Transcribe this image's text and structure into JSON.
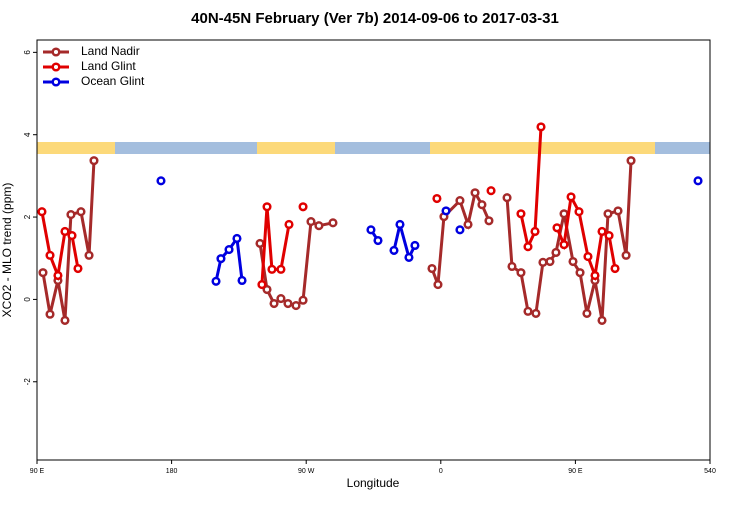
{
  "chart_data": {
    "type": "line",
    "title": "40N-45N February (Ver 7b)   2014-09-06 to 2017-03-31",
    "x_label": "Longitude",
    "y_label": "XCO2 - MLO trend (ppm)",
    "xlim": [
      90,
      540
    ],
    "ylim": [
      -3.9,
      6.3
    ],
    "xticks": [
      {
        "value": 90,
        "label": "90 E"
      },
      180,
      {
        "value": 270,
        "label": "90 W"
      },
      {
        "value": 360,
        "label": "0"
      },
      {
        "value": 450,
        "label": "90 E"
      },
      540
    ],
    "yticks": [
      -2,
      0,
      2,
      4,
      6
    ],
    "legend": "top-left",
    "series": [
      {
        "name": "Land Nadir",
        "color": "#a52a2a",
        "x": [
          94.0,
          98.7,
          104.0,
          108.7,
          112.7,
          119.4,
          124.8,
          128.1,
          null,
          239.1,
          243.8,
          248.5,
          253.1,
          257.8,
          263.2,
          267.9,
          273.2,
          278.5,
          287.9,
          null,
          354.1,
          358.1,
          362.1,
          372.8,
          378.2,
          382.9,
          387.5,
          392.2,
          null,
          404.3,
          407.6,
          413.6,
          418.3,
          423.6,
          428.3,
          433.0,
          437.0,
          442.4,
          448.4,
          453.1,
          457.7,
          463.1,
          467.8,
          471.8,
          478.5,
          483.9,
          487.2
        ],
        "values": [
          0.65,
          -0.36,
          0.46,
          -0.51,
          2.06,
          2.13,
          1.07,
          3.37,
          null,
          1.36,
          0.24,
          -0.1,
          0.02,
          -0.1,
          -0.15,
          -0.02,
          1.89,
          1.79,
          1.86,
          null,
          0.75,
          0.36,
          2.01,
          2.4,
          1.82,
          2.59,
          2.3,
          1.91,
          null,
          2.47,
          0.8,
          0.65,
          -0.29,
          -0.34,
          0.9,
          0.92,
          1.14,
          2.08,
          0.92,
          0.65,
          -0.34,
          0.46,
          -0.51,
          2.08,
          2.15,
          1.07,
          3.37
        ]
      },
      {
        "name": "Land Glint",
        "color": "#e00000",
        "x": [
          93.3,
          98.7,
          104.0,
          108.7,
          113.4,
          117.4,
          null,
          240.4,
          243.8,
          247.1,
          253.1,
          258.5,
          null,
          267.9,
          null,
          357.4,
          null,
          393.6,
          null,
          413.6,
          418.3,
          423.0,
          427.0,
          null,
          437.7,
          442.4,
          447.1,
          452.4,
          458.4,
          463.1,
          467.8,
          472.5,
          476.5
        ],
        "values": [
          2.13,
          1.07,
          0.58,
          1.65,
          1.55,
          0.75,
          null,
          0.36,
          2.25,
          0.73,
          0.73,
          1.82,
          null,
          2.25,
          null,
          2.45,
          null,
          2.64,
          null,
          2.08,
          1.28,
          1.65,
          4.19,
          null,
          1.74,
          1.33,
          2.49,
          2.13,
          1.04,
          0.58,
          1.65,
          1.55,
          0.75
        ]
      },
      {
        "name": "Ocean Glint",
        "color": "#0000e0",
        "x": [
          172.9,
          null,
          209.7,
          213.0,
          218.4,
          223.7,
          227.1,
          null,
          313.3,
          318.0,
          null,
          328.7,
          332.7,
          338.7,
          342.7,
          null,
          363.5,
          null,
          372.8,
          null,
          532.0
        ],
        "values": [
          2.88,
          null,
          0.44,
          0.99,
          1.21,
          1.48,
          0.46,
          null,
          1.69,
          1.43,
          null,
          1.19,
          1.82,
          1.02,
          1.31,
          null,
          2.15,
          null,
          1.69,
          null,
          2.88
        ]
      }
    ]
  }
}
